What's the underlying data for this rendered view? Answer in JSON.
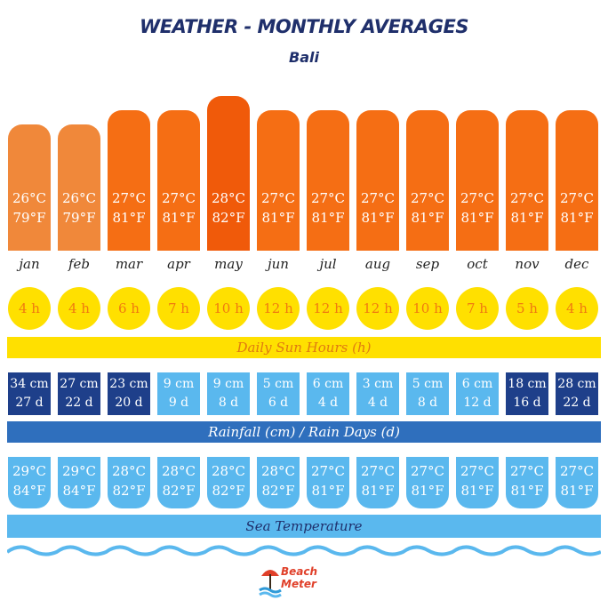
{
  "header": {
    "title": "WEATHER - MONTHLY AVERAGES",
    "location": "Bali"
  },
  "bands": {
    "sun": "Daily Sun Hours (h)",
    "rain": "Rainfall (cm) / Rain Days (d)",
    "sea": "Sea Temperature"
  },
  "logo": {
    "line1": "Beach",
    "line2": "Meter"
  },
  "colors": {
    "temp_light": "#f0883a",
    "temp_mid": "#f56e14",
    "temp_peak": "#f05a0a",
    "sun_yellow": "#ffe000",
    "sun_text": "#f07a10",
    "rain_dark": "#1e3f8a",
    "rain_light": "#5ab8ee",
    "band_rain": "#2f6fbd",
    "sea": "#5ab8ee"
  },
  "chart_data": {
    "type": "table",
    "months": [
      "jan",
      "feb",
      "mar",
      "apr",
      "may",
      "jun",
      "jul",
      "aug",
      "sep",
      "oct",
      "nov",
      "dec"
    ],
    "air_temp_c": [
      "26°C",
      "26°C",
      "27°C",
      "27°C",
      "28°C",
      "27°C",
      "27°C",
      "27°C",
      "27°C",
      "27°C",
      "27°C",
      "27°C"
    ],
    "air_temp_f": [
      "79°F",
      "79°F",
      "81°F",
      "81°F",
      "82°F",
      "81°F",
      "81°F",
      "81°F",
      "81°F",
      "81°F",
      "81°F",
      "81°F"
    ],
    "air_temp_value_c": [
      26,
      26,
      27,
      27,
      28,
      27,
      27,
      27,
      27,
      27,
      27,
      27
    ],
    "sun_hours": [
      "4 h",
      "4 h",
      "6 h",
      "7 h",
      "10 h",
      "12 h",
      "12 h",
      "12 h",
      "10 h",
      "7 h",
      "5 h",
      "4 h"
    ],
    "rainfall": [
      "34 cm",
      "27 cm",
      "23 cm",
      "9 cm",
      "9 cm",
      "5 cm",
      "6 cm",
      "3 cm",
      "5 cm",
      "6 cm",
      "18 cm",
      "28 cm"
    ],
    "rain_days": [
      "27 d",
      "22 d",
      "20 d",
      "9 d",
      "8 d",
      "6 d",
      "4 d",
      "4 d",
      "8 d",
      "12 d",
      "16 d",
      "22 d"
    ],
    "rain_heavy": [
      true,
      true,
      true,
      false,
      false,
      false,
      false,
      false,
      false,
      false,
      true,
      true
    ],
    "sea_temp_c": [
      "29°C",
      "29°C",
      "28°C",
      "28°C",
      "28°C",
      "28°C",
      "27°C",
      "27°C",
      "27°C",
      "27°C",
      "27°C",
      "27°C"
    ],
    "sea_temp_f": [
      "84°F",
      "84°F",
      "82°F",
      "82°F",
      "82°F",
      "82°F",
      "81°F",
      "81°F",
      "81°F",
      "81°F",
      "81°F",
      "81°F"
    ]
  }
}
